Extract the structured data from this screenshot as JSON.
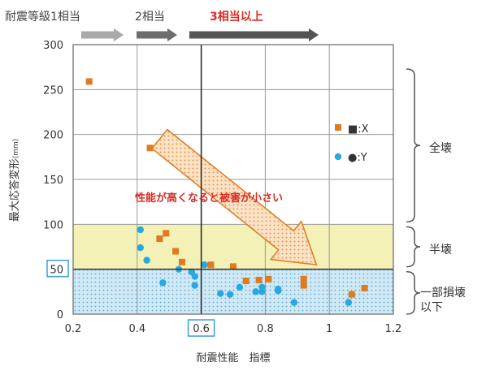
{
  "chart_data": {
    "type": "scatter",
    "xlabel": "耐震性能　指標",
    "ylabel": "最大応答変形",
    "ylabel_unit": "(mm)",
    "xlim": [
      0.2,
      1.2
    ],
    "ylim": [
      0,
      300
    ],
    "x_ticks": [
      "0.2",
      "0.4",
      "0.6",
      "0.8",
      "1",
      "1.2"
    ],
    "y_ticks": [
      "0",
      "50",
      "100",
      "150",
      "200",
      "250",
      "300"
    ],
    "highlight_x_tick": "0.6",
    "highlight_y_tick": "50",
    "grid": true,
    "legend": {
      "placement": "top-right",
      "entries": [
        {
          "marker": "square",
          "label": "■:X",
          "color": "#e07a1f"
        },
        {
          "marker": "circle",
          "label": "●:Y",
          "color": "#29a8e0"
        }
      ]
    },
    "series": [
      {
        "name": "X",
        "marker": "square",
        "color": "#e07a1f",
        "points": [
          [
            0.25,
            259
          ],
          [
            0.44,
            185
          ],
          [
            0.47,
            84
          ],
          [
            0.49,
            90
          ],
          [
            0.52,
            70
          ],
          [
            0.54,
            58
          ],
          [
            0.63,
            55
          ],
          [
            0.7,
            53
          ],
          [
            0.74,
            37
          ],
          [
            0.78,
            38
          ],
          [
            0.81,
            39
          ],
          [
            0.92,
            39
          ],
          [
            0.92,
            32
          ],
          [
            1.07,
            22
          ],
          [
            1.11,
            29
          ]
        ]
      },
      {
        "name": "Y",
        "marker": "circle",
        "color": "#29a8e0",
        "points": [
          [
            0.41,
            94
          ],
          [
            0.41,
            74
          ],
          [
            0.43,
            60
          ],
          [
            0.48,
            35
          ],
          [
            0.53,
            50
          ],
          [
            0.57,
            47
          ],
          [
            0.58,
            42
          ],
          [
            0.58,
            32
          ],
          [
            0.61,
            55
          ],
          [
            0.66,
            23
          ],
          [
            0.69,
            22
          ],
          [
            0.72,
            30
          ],
          [
            0.77,
            25
          ],
          [
            0.79,
            25
          ],
          [
            0.79,
            30
          ],
          [
            0.84,
            26
          ],
          [
            0.84,
            28
          ],
          [
            0.89,
            13
          ],
          [
            1.06,
            13
          ]
        ]
      }
    ],
    "zones": [
      {
        "name": "全壊",
        "y_range": [
          100,
          300
        ]
      },
      {
        "name": "半壊",
        "y_range": [
          50,
          100
        ],
        "fill": "#f3f1b5"
      },
      {
        "name": "一部損壊\n以下",
        "y_range": [
          0,
          50
        ],
        "fill": "#cfe9f6"
      }
    ],
    "annotation": "性能が高くなると被害が小さい",
    "grade_arrows": [
      {
        "label": "耐震等級1相当",
        "color": "#a9a9a9",
        "x_range": [
          0.2,
          0.4
        ]
      },
      {
        "label": "2相当",
        "color": "#6d6d6d",
        "x_range": [
          0.4,
          0.6
        ]
      },
      {
        "label": "3相当以上",
        "color": "#555555",
        "label_color": "#d62d24",
        "x_range": [
          0.6,
          1.2
        ]
      }
    ]
  }
}
